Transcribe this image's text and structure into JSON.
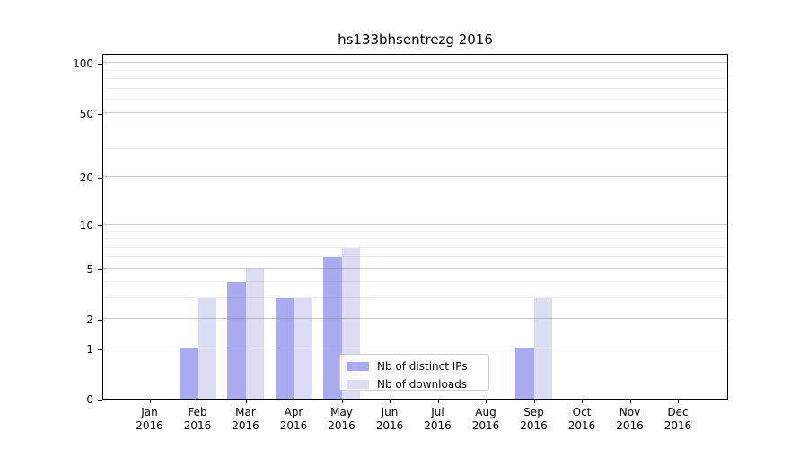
{
  "chart_data": {
    "type": "bar",
    "title": "hs133bhsentrezg 2016",
    "categories": [
      {
        "month": "Jan",
        "year": "2016"
      },
      {
        "month": "Feb",
        "year": "2016"
      },
      {
        "month": "Mar",
        "year": "2016"
      },
      {
        "month": "Apr",
        "year": "2016"
      },
      {
        "month": "May",
        "year": "2016"
      },
      {
        "month": "Jun",
        "year": "2016"
      },
      {
        "month": "Jul",
        "year": "2016"
      },
      {
        "month": "Aug",
        "year": "2016"
      },
      {
        "month": "Sep",
        "year": "2016"
      },
      {
        "month": "Oct",
        "year": "2016"
      },
      {
        "month": "Nov",
        "year": "2016"
      },
      {
        "month": "Dec",
        "year": "2016"
      }
    ],
    "series": [
      {
        "name": "Nb of distinct IPs",
        "color": "#aaaaf0",
        "values": [
          0,
          1,
          4,
          3,
          6,
          0,
          0,
          0,
          1,
          0,
          0,
          0
        ]
      },
      {
        "name": "Nb of downloads",
        "color": "#dcdcf5",
        "values": [
          0,
          3,
          5,
          3,
          7,
          0,
          0,
          0,
          3,
          0,
          0,
          0
        ]
      }
    ],
    "xlabel": "",
    "ylabel": "",
    "yscale": "log1p",
    "yticks": [
      0,
      1,
      2,
      5,
      10,
      20,
      50,
      100
    ],
    "minor_gridlines": [
      3,
      4,
      6,
      7,
      8,
      9,
      30,
      40,
      60,
      70,
      80,
      90
    ],
    "ylim": [
      0,
      114
    ],
    "grid": "horizontal",
    "legend_position": "inside-bottom-center"
  }
}
